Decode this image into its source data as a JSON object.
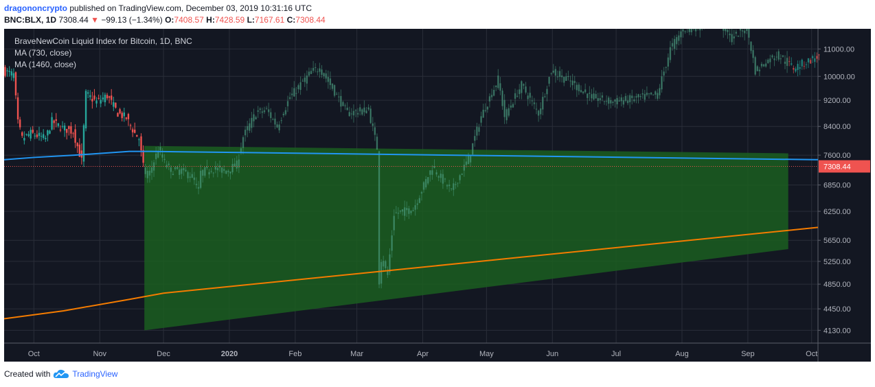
{
  "header": {
    "author": "dragononcrypto",
    "published": "published on TradingView.com, December 03, 2019 10:31:16 UTC",
    "symbol": "BNC:BLX, 1D",
    "last": "7308.44",
    "change_arrow": "▼",
    "change": "−99.13 (−1.34%)",
    "open_label": "O:",
    "open": "7408.57",
    "high_label": "H:",
    "high": "7428.59",
    "low_label": "L:",
    "low": "7167.61",
    "close_label": "C:",
    "close": "7308.44"
  },
  "legend": {
    "title": "BraveNewCoin Liquid Index for Bitcoin, 1D, BNC",
    "ma1": "MA (730, close)",
    "ma2": "MA (1460, close)"
  },
  "footer": {
    "created_with": "Created with",
    "brand": "TradingView",
    "logo_icon": "tradingview-cloud-icon"
  },
  "colors": {
    "background": "#131722",
    "grid": "#2a2e39",
    "up": "#26a69a",
    "down": "#ef5350",
    "ma730": "#2196f3",
    "ma1460": "#f57c00",
    "triangle": "#1b5e20",
    "price_line": "#ef5350"
  },
  "chart_data": {
    "type": "candlestick",
    "x_labels": [
      "Oct",
      "Nov",
      "Dec",
      "2020",
      "Feb",
      "Mar",
      "Apr",
      "May",
      "Jun",
      "Jul",
      "Aug",
      "Sep",
      "Oct"
    ],
    "y_ticks": [
      11000,
      10000,
      9200,
      8400,
      7600,
      6850,
      6250,
      5650,
      5250,
      4850,
      4450,
      4130
    ],
    "y_tick_labels": [
      "11000.00",
      "10000.00",
      "9200.00",
      "8400.00",
      "7600.00",
      "6850.00",
      "6250.00",
      "5650.00",
      "5250.00",
      "4850.00",
      "4450.00",
      "4130.00"
    ],
    "last_price": 7308.44,
    "last_price_label": "7308.44",
    "x_range": [
      "2019-09-17",
      "2020-10-04"
    ],
    "y_range": [
      3950,
      11800
    ],
    "y_scale": "log",
    "grid": true,
    "price_path": [
      [
        "2019-09-17",
        10200
      ],
      [
        "2019-09-22",
        10050
      ],
      [
        "2019-09-24",
        8500
      ],
      [
        "2019-09-26",
        8050
      ],
      [
        "2019-09-30",
        8200
      ],
      [
        "2019-10-07",
        8050
      ],
      [
        "2019-10-10",
        8550
      ],
      [
        "2019-10-15",
        8350
      ],
      [
        "2019-10-20",
        8250
      ],
      [
        "2019-10-24",
        7450
      ],
      [
        "2019-10-26",
        9400
      ],
      [
        "2019-10-31",
        9150
      ],
      [
        "2019-11-05",
        9350
      ],
      [
        "2019-11-10",
        8800
      ],
      [
        "2019-11-14",
        8650
      ],
      [
        "2019-11-18",
        8200
      ],
      [
        "2019-11-20",
        8050
      ],
      [
        "2019-11-22",
        7300
      ],
      [
        "2019-11-24",
        7000
      ],
      [
        "2019-11-25",
        7150
      ],
      [
        "2019-11-29",
        7750
      ],
      [
        "2019-12-03",
        7308
      ],
      [
        "2019-12-05",
        7200
      ],
      [
        "2019-12-10",
        7200
      ],
      [
        "2019-12-15",
        7050
      ],
      [
        "2019-12-18",
        6700
      ],
      [
        "2019-12-19",
        7150
      ],
      [
        "2019-12-24",
        7250
      ],
      [
        "2019-12-31",
        7200
      ],
      [
        "2020-01-05",
        7350
      ],
      [
        "2020-01-08",
        8100
      ],
      [
        "2020-01-14",
        8800
      ],
      [
        "2020-01-19",
        8900
      ],
      [
        "2020-01-24",
        8400
      ],
      [
        "2020-01-30",
        9300
      ],
      [
        "2020-02-09",
        10150
      ],
      [
        "2020-02-13",
        10300
      ],
      [
        "2020-02-19",
        9600
      ],
      [
        "2020-02-26",
        8800
      ],
      [
        "2020-03-07",
        8900
      ],
      [
        "2020-03-11",
        7800
      ],
      [
        "2020-03-12",
        4900
      ],
      [
        "2020-03-13",
        5300
      ],
      [
        "2020-03-16",
        5000
      ],
      [
        "2020-03-19",
        6200
      ],
      [
        "2020-03-28",
        6300
      ],
      [
        "2020-04-06",
        7300
      ],
      [
        "2020-04-15",
        6700
      ],
      [
        "2020-04-23",
        7500
      ],
      [
        "2020-04-29",
        8700
      ],
      [
        "2020-05-07",
        9900
      ],
      [
        "2020-05-10",
        8700
      ],
      [
        "2020-05-18",
        9700
      ],
      [
        "2020-05-26",
        8800
      ],
      [
        "2020-06-01",
        10200
      ],
      [
        "2020-06-10",
        9800
      ],
      [
        "2020-06-20",
        9300
      ],
      [
        "2020-06-30",
        9150
      ],
      [
        "2020-07-10",
        9250
      ],
      [
        "2020-07-21",
        9400
      ],
      [
        "2020-07-27",
        11000
      ],
      [
        "2020-08-02",
        11800
      ],
      [
        "2020-08-10",
        11900
      ],
      [
        "2020-08-17",
        12300
      ],
      [
        "2020-08-25",
        11400
      ],
      [
        "2020-09-01",
        11900
      ],
      [
        "2020-09-05",
        10200
      ],
      [
        "2020-09-15",
        10800
      ],
      [
        "2020-09-23",
        10300
      ],
      [
        "2020-10-04",
        10700
      ]
    ],
    "ma730": [
      [
        "2019-09-17",
        7480
      ],
      [
        "2019-10-01",
        7540
      ],
      [
        "2019-10-20",
        7600
      ],
      [
        "2019-11-15",
        7700
      ],
      [
        "2019-11-25",
        7700
      ],
      [
        "2020-10-04",
        7480
      ]
    ],
    "ma1460": [
      [
        "2019-09-17",
        4300
      ],
      [
        "2019-10-15",
        4420
      ],
      [
        "2019-11-15",
        4600
      ],
      [
        "2019-12-01",
        4700
      ],
      [
        "2020-10-04",
        5910
      ]
    ],
    "triangle": [
      [
        "2019-11-22",
        7850
      ],
      [
        "2020-09-20",
        7650
      ],
      [
        "2020-09-20",
        5480
      ],
      [
        "2019-11-22",
        4130
      ]
    ]
  }
}
